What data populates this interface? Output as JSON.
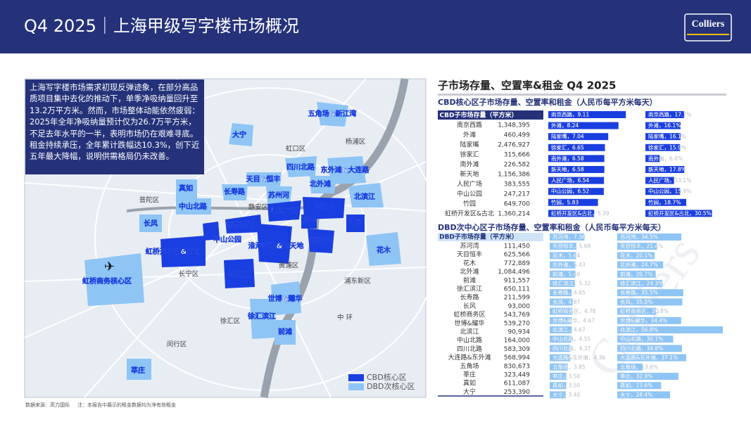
{
  "header": {
    "title": "Q4 2025｜上海甲级写字楼市场概况",
    "logo": "Colliers"
  },
  "map": {
    "summary": "上海写字楼市场需求初现反弹迹象，在部分高品质项目集中去化的推动下，单季净吸纳量回升至13.2万平方米。然而，市场整体动能依然疲弱：2025年全年净吸纳量预计仅为26.7万平方米，不足去年水平的一半，表明市场仍在艰难寻底。租金持续承压，全年累计跌幅达10.3%，创下近五年最大降幅，说明供需格局仍未改善。",
    "labels": [
      "虹口区",
      "杨浦区",
      "普陀区",
      "静安区",
      "黄浦区",
      "浦东新区",
      "长宁区",
      "徐汇区",
      "闵行区",
      "中 环",
      "大宁",
      "五角场&新江湾",
      "天目&恒丰",
      "四川北路",
      "东外滩&大连路",
      "长寿路",
      "苏州河",
      "北外滩",
      "北滨江",
      "真如",
      "中山北路",
      "长风",
      "人民广场",
      "南京西路",
      "陆家嘴",
      "外滩",
      "竹园",
      "中山公园",
      "淮海中路&新天地",
      "南外滩",
      "花木",
      "虹桥开发区&古北",
      "虹桥商务核心区",
      "徐家汇",
      "世博&耀华",
      "徐汇滨江",
      "前滩",
      "莘庄"
    ],
    "legend": [
      "CBD核心区",
      "DBD次核心区"
    ]
  },
  "source": "数据来源：高力国际",
  "note": "注：本报告中展示的租金数据均为净有效租金",
  "watermark": "Colliers",
  "panel": {
    "title": "子市场存量、空置率&租金 Q4 2025",
    "cbd": {
      "title": "CBD核心区子市场存量、空置率和租金（人民币每平方米每天）",
      "header": "CBD子市场存量（平方米）",
      "rows": [
        {
          "name": "南京西路",
          "stock": "1,348,395",
          "rent": 9.11,
          "rent_label": "南京西路，9.11",
          "vacancy": 17.7,
          "vacancy_label": "南京西路，17.7%"
        },
        {
          "name": "外滩",
          "stock": "460,499",
          "rent": 8.24,
          "rent_label": "外滩，8.24",
          "vacancy": 16.1,
          "vacancy_label": "外滩，16.1%"
        },
        {
          "name": "陆家嘴",
          "stock": "2,476,927",
          "rent": 7.04,
          "rent_label": "陆家嘴，7.04",
          "vacancy": 16.1,
          "vacancy_label": "陆家嘴，16.1%"
        },
        {
          "name": "徐家汇",
          "stock": "315,666",
          "rent": 6.65,
          "rent_label": "徐家汇，6.65",
          "vacancy": 15.9,
          "vacancy_label": "徐家汇，15.9%"
        },
        {
          "name": "南外滩",
          "stock": "226,582",
          "rent": 6.58,
          "rent_label": "南外滩，6.58",
          "vacancy": 6.6,
          "vacancy_label": "南外滩，6.6%"
        },
        {
          "name": "新天地",
          "stock": "1,156,386",
          "rent": 6.58,
          "rent_label": "新天地，6.58",
          "vacancy": 17.8,
          "vacancy_label": "新天地，17.8%"
        },
        {
          "name": "人民广场",
          "stock": "383,555",
          "rent": 6.54,
          "rent_label": "人民广场，6.54",
          "vacancy": 13.1,
          "vacancy_label": "人民广场，13.1%"
        },
        {
          "name": "中山公园",
          "stock": "247,217",
          "rent": 6.52,
          "rent_label": "中山公园，6.52",
          "vacancy": 15.9,
          "vacancy_label": "中山公园，15.9%"
        },
        {
          "name": "竹园",
          "stock": "649,700",
          "rent": 5.83,
          "rent_label": "竹园，5.83",
          "vacancy": 18.7,
          "vacancy_label": "竹园，18.7%"
        },
        {
          "name": "虹桥开发区&古北",
          "stock": "1,360,214",
          "rent": 5.39,
          "rent_label": "虹桥开发区&古北，5.39",
          "vacancy": 30.5,
          "vacancy_label": "虹桥开发区&古北，30.5%"
        }
      ]
    },
    "dbd": {
      "title": "DBD次中心区子市场存量、空置率和租金（人民币每平方米每天）",
      "header": "DBD子市场存量（平方米）",
      "rows": [
        {
          "name": "苏河湾",
          "stock": "111,450",
          "rent": 7.36,
          "rent_label": "苏河湾，7.36",
          "vacancy": 34.5,
          "vacancy_label": "苏河湾，34.5%"
        },
        {
          "name": "天目恒丰",
          "stock": "625,566",
          "rent": 5.68,
          "rent_label": "天目恒丰，5.68",
          "vacancy": 21.4,
          "vacancy_label": "天目恒丰，21.4%"
        },
        {
          "name": "花木",
          "stock": "772,889",
          "rent": 5.64,
          "rent_label": "花木，5.64",
          "vacancy": 20.1,
          "vacancy_label": "花木，20.1%"
        },
        {
          "name": "北外滩",
          "stock": "1,084,496",
          "rent": 5.43,
          "rent_label": "北外滩，5.43",
          "vacancy": 24.7,
          "vacancy_label": "北外滩，24.7%"
        },
        {
          "name": "前滩",
          "stock": "911,557",
          "rent": 5.4,
          "rent_label": "前滩，5.40",
          "vacancy": 20.7,
          "vacancy_label": "前滩，20.7%"
        },
        {
          "name": "徐汇滨江",
          "stock": "650,111",
          "rent": 5.32,
          "rent_label": "徐汇滨江，5.32",
          "vacancy": 24.3,
          "vacancy_label": "徐汇滨江，24.3%"
        },
        {
          "name": "长寿路",
          "stock": "211,599",
          "rent": 4.65,
          "rent_label": "长寿路，4.65",
          "vacancy": 35.5,
          "vacancy_label": "长寿路，35.5%"
        },
        {
          "name": "长风",
          "stock": "93,000",
          "rent": 4.87,
          "rent_label": "长风，4.87",
          "vacancy": 35.0,
          "vacancy_label": "长风，35.0%"
        },
        {
          "name": "虹桥商务区",
          "stock": "543,769",
          "rent": 4.76,
          "rent_label": "虹桥商务区，4.76",
          "vacancy": 20.8,
          "vacancy_label": "虹桥商务区，20.8%"
        },
        {
          "name": "世博&耀华",
          "stock": "539,270",
          "rent": 4.67,
          "rent_label": "世博&耀华，4.67",
          "vacancy": 34.4,
          "vacancy_label": "世博&耀华，34.4%"
        },
        {
          "name": "北滨江",
          "stock": "90,934",
          "rent": 4.67,
          "rent_label": "北滨江，4.67",
          "vacancy": 56.8,
          "vacancy_label": "北滨江，56.8%"
        },
        {
          "name": "中山北路",
          "stock": "164,000",
          "rent": 4.55,
          "rent_label": "中山北路，4.55",
          "vacancy": 30.1,
          "vacancy_label": "中山北路，30.1%"
        },
        {
          "name": "四川北路",
          "stock": "583,309",
          "rent": 4.37,
          "rent_label": "四川北路，4.37",
          "vacancy": 34.8,
          "vacancy_label": "四川北路，34.8%"
        },
        {
          "name": "大连路&东外滩",
          "stock": "568,994",
          "rent": 4.36,
          "rent_label": "大连路&东外滩，4.36",
          "vacancy": 37.1,
          "vacancy_label": "大连路&东外滩，37.1%"
        },
        {
          "name": "五角场",
          "stock": "830,673",
          "rent": 3.85,
          "rent_label": "五角场，3.85",
          "vacancy": 13.6,
          "vacancy_label": "五角场，13.6%"
        },
        {
          "name": "莘庄",
          "stock": "323,449",
          "rent": 3.5,
          "rent_label": "莘庄，3.50",
          "vacancy": 32.9,
          "vacancy_label": "莘庄，32.9%"
        },
        {
          "name": "真如",
          "stock": "611,087",
          "rent": 3.5,
          "rent_label": "真如，3.50",
          "vacancy": 23.6,
          "vacancy_label": "真如，23.6%"
        },
        {
          "name": "大宁",
          "stock": "253,390",
          "rent": 3.4,
          "rent_label": "大宁，3.40",
          "vacancy": 28.4,
          "vacancy_label": "大宁，28.4%"
        }
      ]
    }
  }
}
